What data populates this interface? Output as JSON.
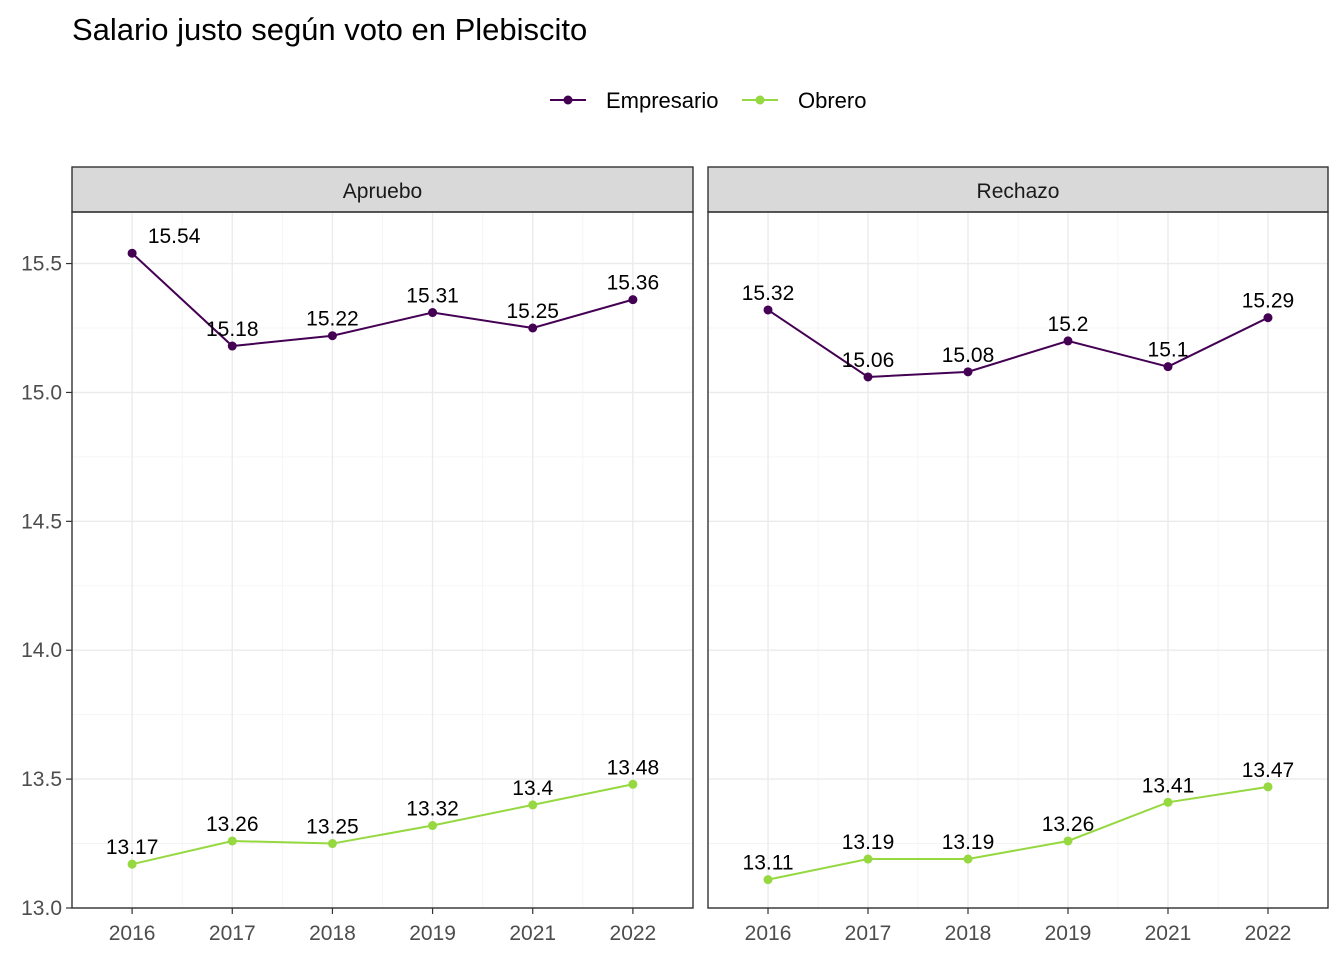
{
  "chart_data": {
    "type": "line",
    "title": "Salario justo según voto en Plebiscito",
    "legend": {
      "position": "top",
      "entries": [
        {
          "name": "Empresario",
          "color": "#440154"
        },
        {
          "name": "Obrero",
          "color": "#95d840"
        }
      ]
    },
    "x": [
      "2016",
      "2017",
      "2018",
      "2019",
      "2021",
      "2022"
    ],
    "ylim": [
      13.0,
      15.7
    ],
    "yticks": [
      "13.0",
      "13.5",
      "14.0",
      "14.5",
      "15.0",
      "15.5"
    ],
    "grid": true,
    "panels": [
      {
        "label": "Apruebo",
        "series": [
          {
            "name": "Empresario",
            "values": [
              15.54,
              15.18,
              15.22,
              15.31,
              15.25,
              15.36
            ],
            "labels": [
              "15.54",
              "15.18",
              "15.22",
              "15.31",
              "15.25",
              "15.36"
            ]
          },
          {
            "name": "Obrero",
            "values": [
              13.17,
              13.26,
              13.25,
              13.32,
              13.4,
              13.48
            ],
            "labels": [
              "13.17",
              "13.26",
              "13.25",
              "13.32",
              "13.4",
              "13.48"
            ]
          }
        ]
      },
      {
        "label": "Rechazo",
        "series": [
          {
            "name": "Empresario",
            "values": [
              15.32,
              15.06,
              15.08,
              15.2,
              15.1,
              15.29
            ],
            "labels": [
              "15.32",
              "15.06",
              "15.08",
              "15.2",
              "15.1",
              "15.29"
            ]
          },
          {
            "name": "Obrero",
            "values": [
              13.11,
              13.19,
              13.19,
              13.26,
              13.41,
              13.47
            ],
            "labels": [
              "13.11",
              "13.19",
              "13.19",
              "13.26",
              "13.41",
              "13.47"
            ]
          }
        ]
      }
    ]
  }
}
